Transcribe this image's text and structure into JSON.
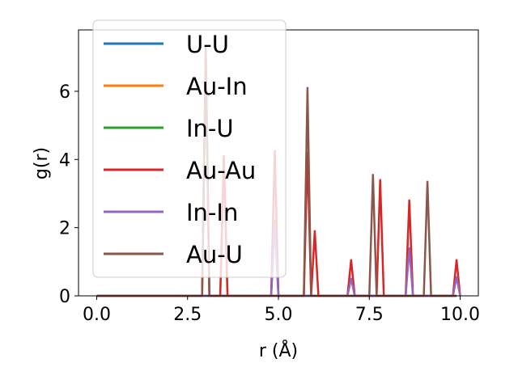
{
  "chart_data": {
    "type": "line",
    "xlabel": "r (Å)",
    "ylabel": "g(r)",
    "xlim": [
      -0.5,
      10.5
    ],
    "ylim": [
      0,
      7.8
    ],
    "xticks": [
      0.0,
      2.5,
      5.0,
      7.5,
      10.0
    ],
    "xtick_labels": [
      "0.0",
      "2.5",
      "5.0",
      "7.5",
      "10.0"
    ],
    "yticks": [
      0,
      2,
      4,
      6
    ],
    "ytick_labels": [
      "0",
      "2",
      "4",
      "6"
    ],
    "grid": false,
    "legend_position": "top-left",
    "series": [
      {
        "name": "U-U",
        "color": "#1f77b4",
        "peaks": []
      },
      {
        "name": "Au-In",
        "color": "#ff7f0e",
        "peaks": [
          [
            3.0,
            7.2
          ],
          [
            3.5,
            4.1
          ]
        ]
      },
      {
        "name": "In-U",
        "color": "#2ca02c",
        "peaks": [
          [
            4.9,
            2.2
          ]
        ]
      },
      {
        "name": "Au-Au",
        "color": "#d62728",
        "peaks": [
          [
            3.0,
            7.2
          ],
          [
            3.5,
            4.1
          ],
          [
            4.9,
            4.25
          ],
          [
            5.8,
            4.2
          ],
          [
            6.0,
            1.9
          ],
          [
            7.0,
            1.05
          ],
          [
            7.8,
            3.4
          ],
          [
            8.6,
            2.8
          ],
          [
            9.9,
            1.05
          ]
        ]
      },
      {
        "name": "In-In",
        "color": "#9467bd",
        "peaks": [
          [
            4.9,
            2.1
          ],
          [
            7.0,
            0.5
          ],
          [
            8.6,
            1.4
          ],
          [
            9.9,
            0.55
          ]
        ]
      },
      {
        "name": "Au-U",
        "color": "#8c564b",
        "peaks": [
          [
            3.0,
            7.3
          ],
          [
            5.8,
            6.1
          ],
          [
            7.6,
            3.55
          ],
          [
            9.1,
            3.35
          ]
        ]
      }
    ]
  }
}
